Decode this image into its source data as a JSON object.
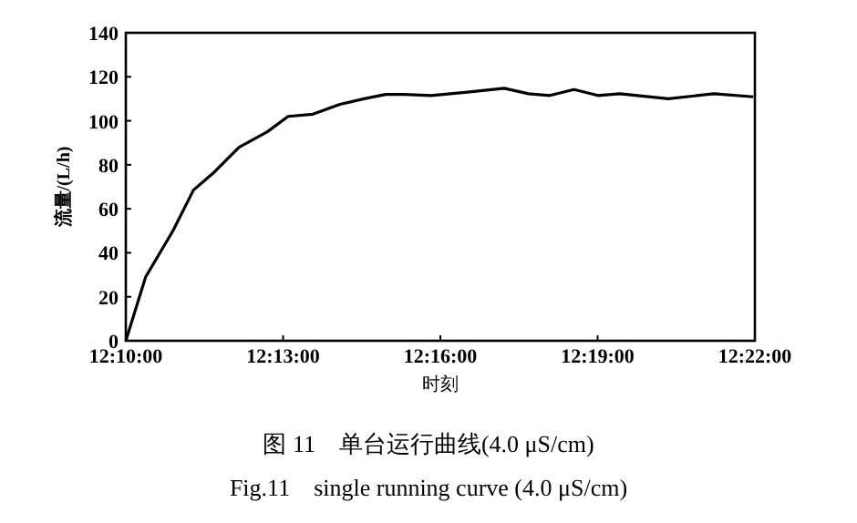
{
  "chart_data": {
    "type": "line",
    "xlabel": "时刻",
    "ylabel": "流量/(L/h)",
    "annotations": [
      "图 11　单台运行曲线(4.0 μS/cm)",
      "Fig.11　single running curve (4.0 μS/cm)"
    ],
    "x": [
      12.1667,
      12.173,
      12.1817,
      12.1882,
      12.1943,
      12.2027,
      12.2117,
      12.2183,
      12.2262,
      12.2348,
      12.2425,
      12.2493,
      12.2552,
      12.2638,
      12.2753,
      12.287,
      12.2947,
      12.3015,
      12.3092,
      12.3168,
      12.3237,
      12.3392,
      12.3537,
      12.3662
    ],
    "series": [
      {
        "color": "#000000",
        "values": [
          0,
          29,
          50,
          68.5,
          76,
          88,
          95,
          102,
          103,
          107.5,
          110,
          112,
          112,
          111.5,
          113,
          114.8,
          112.3,
          111.5,
          114.2,
          111.5,
          112.3,
          110,
          112.3,
          110.9
        ]
      }
    ],
    "xlim": [
      12.1667,
      12.3667
    ],
    "ylim": [
      0,
      140
    ],
    "xticks": [
      {
        "value": 12.1667,
        "label": "12:10:00"
      },
      {
        "value": 12.2167,
        "label": "12:13:00"
      },
      {
        "value": 12.2667,
        "label": "12:16:00"
      },
      {
        "value": 12.3167,
        "label": "12:19:00"
      },
      {
        "value": 12.3667,
        "label": "12:22:00"
      }
    ],
    "yticks": [
      0,
      20,
      40,
      60,
      80,
      100,
      120,
      140
    ]
  }
}
